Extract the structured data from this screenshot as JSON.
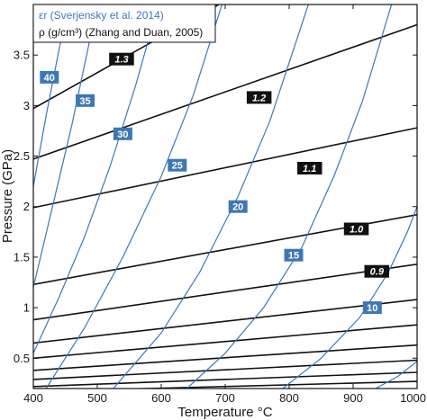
{
  "chart_data": {
    "type": "line",
    "xlabel": "Temperature °C",
    "ylabel": "Pressure (GPa)",
    "xlim": [
      400,
      1000
    ],
    "ylim": [
      0.2,
      4.0
    ],
    "xticks": [
      "400",
      "500",
      "600",
      "700",
      "800",
      "900",
      "1000"
    ],
    "yticks": [
      "0.5",
      "1",
      "1.5",
      "2",
      "2.5",
      "3",
      "3.5"
    ],
    "legend": {
      "position": "top-left",
      "entries": [
        {
          "label": "εr (Sverjensky et al. 2014)",
          "color": "#3d78b5"
        },
        {
          "label": "ρ (g/cm³) (Zhang and Duan, 2005)",
          "color": "#111111"
        }
      ]
    },
    "colors": {
      "dielectric": "#3d78b5",
      "density": "#111111"
    },
    "density_series": [
      {
        "label": "1.3",
        "points": [
          [
            400,
            2.97
          ],
          [
            1000,
            5.1
          ]
        ],
        "label_at": [
          538,
          3.46
        ]
      },
      {
        "label": "1.2",
        "points": [
          [
            400,
            2.47
          ],
          [
            1000,
            3.8
          ]
        ],
        "label_at": [
          753,
          3.08
        ]
      },
      {
        "label": "1.1",
        "points": [
          [
            400,
            1.99
          ],
          [
            1000,
            2.78
          ]
        ],
        "label_at": [
          832,
          2.38
        ]
      },
      {
        "label": "1.0",
        "points": [
          [
            400,
            1.23
          ],
          [
            1000,
            1.92
          ]
        ],
        "label_at": [
          905,
          1.78
        ]
      },
      {
        "label": "0.9",
        "points": [
          [
            400,
            0.88
          ],
          [
            1000,
            1.43
          ]
        ],
        "label_at": [
          937,
          1.36
        ]
      },
      {
        "label": "",
        "points": [
          [
            400,
            0.65
          ],
          [
            1000,
            1.08
          ]
        ]
      },
      {
        "label": "",
        "points": [
          [
            400,
            0.5
          ],
          [
            1000,
            0.83
          ]
        ]
      },
      {
        "label": "",
        "points": [
          [
            400,
            0.38
          ],
          [
            1000,
            0.63
          ]
        ]
      },
      {
        "label": "",
        "points": [
          [
            400,
            0.29
          ],
          [
            1000,
            0.48
          ]
        ]
      },
      {
        "label": "",
        "points": [
          [
            400,
            0.22
          ],
          [
            1000,
            0.36
          ]
        ]
      },
      {
        "label": "",
        "points": [
          [
            400,
            0.17
          ],
          [
            1000,
            0.27
          ]
        ]
      }
    ],
    "dielectric_series": [
      {
        "label": "",
        "points": [
          [
            400,
            4.0
          ],
          [
            420,
            4.4
          ],
          [
            440,
            5.0
          ]
        ]
      },
      {
        "label": "40",
        "points": [
          [
            400,
            2.2
          ],
          [
            420,
            2.9
          ],
          [
            440,
            3.55
          ],
          [
            455,
            4.0
          ]
        ],
        "label_at": [
          425,
          3.28
        ]
      },
      {
        "label": "35",
        "points": [
          [
            400,
            1.2
          ],
          [
            430,
            2.0
          ],
          [
            460,
            2.8
          ],
          [
            490,
            3.7
          ],
          [
            505,
            4.2
          ]
        ],
        "label_at": [
          481,
          3.05
        ]
      },
      {
        "label": "30",
        "points": [
          [
            400,
            0.55
          ],
          [
            440,
            1.1
          ],
          [
            480,
            1.7
          ],
          [
            520,
            2.4
          ],
          [
            560,
            3.2
          ],
          [
            600,
            4.1
          ]
        ],
        "label_at": [
          540,
          2.72
        ]
      },
      {
        "label": "25",
        "points": [
          [
            420,
            0.2
          ],
          [
            480,
            0.8
          ],
          [
            540,
            1.5
          ],
          [
            600,
            2.3
          ],
          [
            650,
            3.1
          ],
          [
            695,
            4.0
          ]
        ],
        "label_at": [
          625,
          2.41
        ]
      },
      {
        "label": "20",
        "points": [
          [
            525,
            0.2
          ],
          [
            600,
            0.75
          ],
          [
            660,
            1.35
          ],
          [
            720,
            2.1
          ],
          [
            770,
            2.85
          ],
          [
            830,
            4.0
          ]
        ],
        "label_at": [
          720,
          2.0
        ]
      },
      {
        "label": "15",
        "points": [
          [
            640,
            0.2
          ],
          [
            700,
            0.55
          ],
          [
            760,
            1.0
          ],
          [
            820,
            1.6
          ],
          [
            870,
            2.3
          ],
          [
            915,
            3.05
          ],
          [
            960,
            4.0
          ]
        ],
        "label_at": [
          807,
          1.52
        ]
      },
      {
        "label": "10",
        "points": [
          [
            790,
            0.2
          ],
          [
            850,
            0.5
          ],
          [
            910,
            0.9
          ],
          [
            955,
            1.35
          ],
          [
            985,
            1.75
          ],
          [
            1000,
            2.0
          ]
        ],
        "label_at": [
          930,
          1.0
        ]
      },
      {
        "label": "",
        "points": [
          [
            935,
            0.2
          ],
          [
            970,
            0.32
          ],
          [
            1000,
            0.47
          ]
        ]
      }
    ]
  }
}
